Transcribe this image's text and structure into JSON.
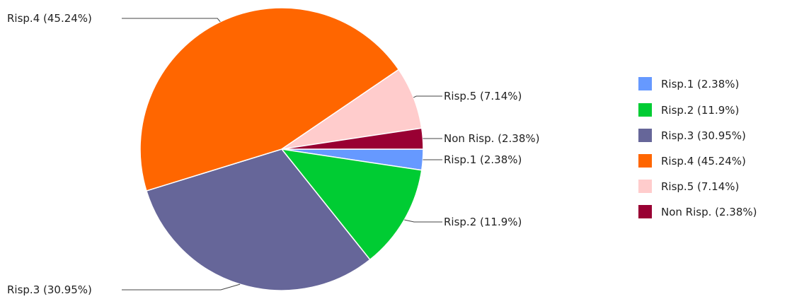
{
  "chart_data": {
    "type": "pie",
    "title": "",
    "categories": [
      "Risp.1",
      "Risp.2",
      "Risp.3",
      "Risp.4",
      "Risp.5",
      "Non Risp."
    ],
    "values": [
      2.38,
      11.9,
      30.95,
      45.24,
      7.14,
      2.38
    ],
    "labels": [
      "Risp.1 (2.38%)",
      "Risp.2 (11.9%)",
      "Risp.3 (30.95%)",
      "Risp.4 (45.24%)",
      "Risp.5 (7.14%)",
      "Non Risp. (2.38%)"
    ],
    "colors": [
      "#6699ff",
      "#00cc33",
      "#666699",
      "#ff6600",
      "#ffcccc",
      "#990033"
    ],
    "legend_position": "right"
  }
}
